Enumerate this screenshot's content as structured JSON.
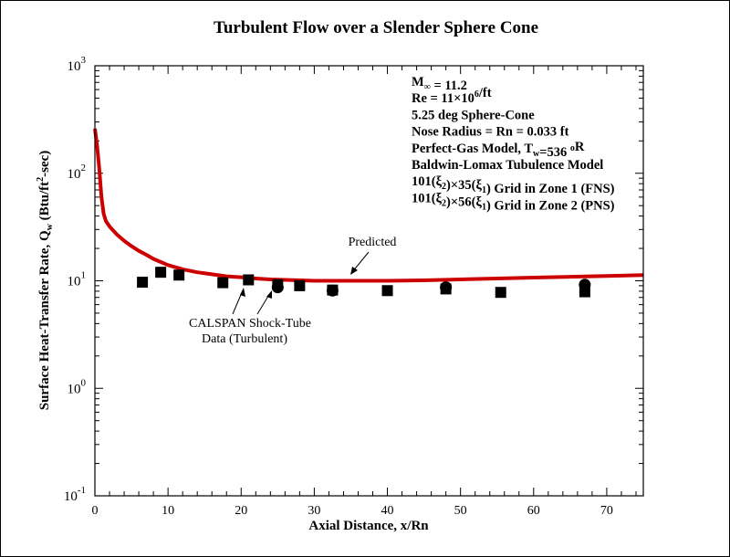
{
  "chart_data": {
    "type": "scatter",
    "title": "Turbulent Flow over a Slender Sphere Cone",
    "xlabel": "Axial Distance, x/Rn",
    "ylabel": {
      "base": "Surface Heat-Transfer Rate, Q",
      "sub": "w",
      "unit_pre": " (Btu/ft",
      "unit_sup": "2",
      "unit_post": "-sec)"
    },
    "xlim": [
      0,
      75
    ],
    "ylim": [
      0.1,
      1000
    ],
    "yscale": "log",
    "x_ticks": [
      0,
      10,
      20,
      30,
      40,
      50,
      60,
      70
    ],
    "x_tick_labels": [
      "0",
      "10",
      "20",
      "30",
      "40",
      "50",
      "60",
      "70"
    ],
    "y_ticks": [
      {
        "value": 0.1,
        "base": "10",
        "exp": "-1"
      },
      {
        "value": 1,
        "base": "10",
        "exp": "0"
      },
      {
        "value": 10,
        "base": "10",
        "exp": "1"
      },
      {
        "value": 100,
        "base": "10",
        "exp": "2"
      },
      {
        "value": 1000,
        "base": "10",
        "exp": "3"
      }
    ],
    "series": [
      {
        "name": "Predicted",
        "kind": "line",
        "color": "#cc0000",
        "x": [
          0,
          0.3,
          0.6,
          0.9,
          1.2,
          1.5,
          2,
          3,
          4,
          5,
          6,
          7,
          8,
          10,
          12,
          14,
          16,
          18,
          20,
          22,
          24,
          26,
          28,
          30,
          32,
          34,
          36,
          38,
          40,
          45,
          50,
          55,
          60,
          65,
          70,
          75
        ],
        "y": [
          260,
          180,
          110,
          60,
          42,
          36,
          32,
          27,
          23.5,
          21,
          19,
          17.5,
          16,
          14,
          12.8,
          12,
          11.5,
          11,
          10.8,
          10.5,
          10.3,
          10.2,
          10.1,
          10,
          10,
          10,
          10,
          10,
          10,
          10.1,
          10.3,
          10.5,
          10.7,
          10.9,
          11.1,
          11.3
        ]
      },
      {
        "name": "CALSPAN Shock-Tube Data (Turbulent) - squares",
        "kind": "marker-square",
        "color": "#000000",
        "x": [
          6.5,
          9,
          11.5,
          17.5,
          21,
          25,
          28,
          32.5,
          40,
          48,
          55.5,
          67
        ],
        "y": [
          9.7,
          12,
          11.3,
          9.6,
          10.2,
          9.2,
          9,
          8.2,
          8.1,
          8.4,
          7.8,
          7.9
        ]
      },
      {
        "name": "CALSPAN Shock-Tube Data (Turbulent) - circles",
        "kind": "marker-circle",
        "color": "#000000",
        "x": [
          25,
          32.5,
          48,
          67
        ],
        "y": [
          8.7,
          8.1,
          8.7,
          9.2
        ]
      }
    ],
    "info_lines": [
      [
        {
          "t": "M"
        },
        {
          "t": "∞",
          "sub": true
        },
        {
          "t": " = 11.2"
        }
      ],
      [
        {
          "t": "Re = 11×10"
        },
        {
          "t": "6",
          "sup": true
        },
        {
          "t": "/ft"
        }
      ],
      [
        {
          "t": "5.25 deg Sphere-Cone"
        }
      ],
      [
        {
          "t": "Nose Radius = Rn = 0.033 ft"
        }
      ],
      [
        {
          "t": "Perfect-Gas Model, T"
        },
        {
          "t": "w",
          "sub": true
        },
        {
          "t": "=536 "
        },
        {
          "t": "o",
          "sup": true
        },
        {
          "t": "R"
        }
      ],
      [
        {
          "t": "Baldwin-Lomax Tubulence Model"
        }
      ],
      [
        {
          "t": "101(ξ"
        },
        {
          "t": "2",
          "sub": true
        },
        {
          "t": ")×35(ξ"
        },
        {
          "t": "1",
          "sub": true
        },
        {
          "t": ") Grid in Zone 1 (FNS)"
        }
      ],
      [
        {
          "t": "101(ξ"
        },
        {
          "t": "2",
          "sub": true
        },
        {
          "t": ")×56(ξ"
        },
        {
          "t": "1",
          "sub": true
        },
        {
          "t": ") Grid in Zone 2 (PNS)"
        }
      ]
    ],
    "annotations": {
      "predicted": "Predicted",
      "data_line1": "CALSPAN Shock-Tube",
      "data_line2": "Data (Turbulent)"
    }
  }
}
